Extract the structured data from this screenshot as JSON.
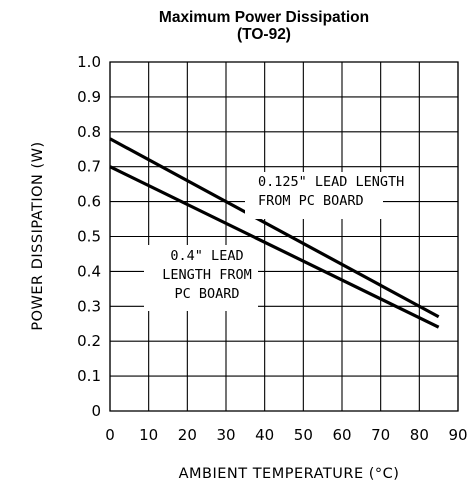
{
  "chart_data": {
    "type": "line",
    "title": [
      "Maximum Power Dissipation",
      "(TO-92)"
    ],
    "xlabel": "AMBIENT TEMPERATURE (°C)",
    "ylabel": "POWER DISSIPATION (W)",
    "xlim": [
      0,
      90
    ],
    "ylim": [
      0,
      1.0
    ],
    "x_ticks": [
      "0",
      "10",
      "20",
      "30",
      "40",
      "50",
      "60",
      "70",
      "80",
      "90"
    ],
    "y_ticks": [
      "0",
      "0.1",
      "0.2",
      "0.3",
      "0.4",
      "0.5",
      "0.6",
      "0.7",
      "0.8",
      "0.9",
      "1.0"
    ],
    "grid": true,
    "series": [
      {
        "name": "0.125\" LEAD LENGTH FROM PC BOARD",
        "x": [
          0,
          85
        ],
        "y": [
          0.78,
          0.27
        ]
      },
      {
        "name": "0.4\" LEAD LENGTH FROM PC BOARD",
        "x": [
          0,
          85
        ],
        "y": [
          0.7,
          0.24
        ]
      }
    ],
    "annotations": [
      {
        "lines": [
          "0.125\" LEAD LENGTH",
          "FROM PC BOARD"
        ]
      },
      {
        "lines": [
          "0.4\" LEAD",
          "LENGTH FROM",
          "PC BOARD"
        ]
      }
    ]
  }
}
